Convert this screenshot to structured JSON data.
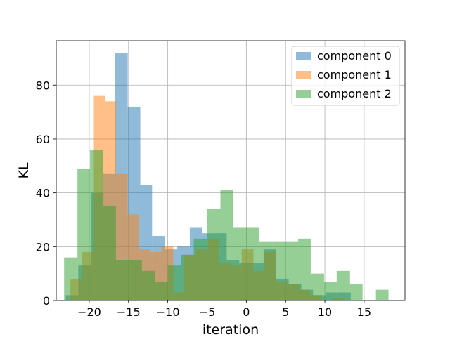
{
  "chart_data": {
    "type": "bar",
    "xlabel": "iteration",
    "ylabel": "KL",
    "xlim": [
      -24.2,
      20.2
    ],
    "ylim": [
      0,
      96.5
    ],
    "xticks": [
      -20,
      -15,
      -10,
      -5,
      0,
      5,
      10,
      15
    ],
    "yticks": [
      0,
      20,
      40,
      60,
      80
    ],
    "grid": true,
    "legend_position": "top-right",
    "series": [
      {
        "name": "component 0",
        "color": "#1f77b4",
        "alpha": 0.5,
        "bins": [
          [
            -23.0,
            -21.4,
            2
          ],
          [
            -21.4,
            -19.8,
            13
          ],
          [
            -19.8,
            -18.3,
            40
          ],
          [
            -18.3,
            -16.7,
            47
          ],
          [
            -16.7,
            -15.1,
            92
          ],
          [
            -15.1,
            -13.5,
            72
          ],
          [
            -13.5,
            -12.0,
            43
          ],
          [
            -12.0,
            -10.4,
            24
          ],
          [
            -10.4,
            -8.8,
            19
          ],
          [
            -8.8,
            -7.2,
            20
          ],
          [
            -7.2,
            -5.6,
            27
          ],
          [
            -5.6,
            -4.1,
            25
          ],
          [
            -4.1,
            -2.5,
            25
          ],
          [
            -2.5,
            -0.9,
            15
          ],
          [
            -0.9,
            0.7,
            14
          ],
          [
            0.7,
            2.2,
            14
          ],
          [
            2.2,
            3.8,
            19
          ],
          [
            3.8,
            5.4,
            8
          ],
          [
            5.4,
            7.0,
            6
          ],
          [
            7.0,
            8.5,
            4
          ],
          [
            8.5,
            10.1,
            2
          ],
          [
            10.1,
            11.7,
            3
          ],
          [
            11.7,
            13.3,
            3
          ],
          [
            13.3,
            14.9,
            0
          ]
        ]
      },
      {
        "name": "component 1",
        "color": "#ff7f0e",
        "alpha": 0.5,
        "bins": [
          [
            -22.4,
            -20.9,
            8
          ],
          [
            -20.9,
            -19.5,
            18
          ],
          [
            -19.5,
            -18.0,
            76
          ],
          [
            -18.0,
            -16.6,
            74
          ],
          [
            -16.6,
            -15.1,
            47
          ],
          [
            -15.1,
            -13.7,
            32
          ],
          [
            -13.7,
            -12.2,
            19
          ],
          [
            -12.2,
            -10.8,
            18
          ],
          [
            -10.8,
            -9.3,
            20
          ],
          [
            -9.3,
            -7.9,
            3
          ],
          [
            -7.9,
            -6.4,
            17
          ],
          [
            -6.4,
            -4.9,
            19
          ],
          [
            -4.9,
            -3.5,
            23
          ],
          [
            -3.5,
            -2.0,
            14
          ],
          [
            -2.0,
            -0.6,
            13
          ],
          [
            -0.6,
            0.9,
            19
          ],
          [
            0.9,
            2.3,
            11
          ],
          [
            2.3,
            3.8,
            18
          ],
          [
            3.8,
            5.2,
            7
          ],
          [
            5.2,
            6.7,
            6
          ],
          [
            6.7,
            8.1,
            4
          ],
          [
            8.1,
            9.6,
            2
          ],
          [
            9.6,
            11.0,
            0
          ],
          [
            11.0,
            12.5,
            1
          ]
        ]
      },
      {
        "name": "component 2",
        "color": "#2ca02c",
        "alpha": 0.5,
        "bins": [
          [
            -23.2,
            -21.5,
            16
          ],
          [
            -21.5,
            -19.9,
            49
          ],
          [
            -19.9,
            -18.2,
            56
          ],
          [
            -18.2,
            -16.6,
            35
          ],
          [
            -16.6,
            -14.9,
            15
          ],
          [
            -14.9,
            -13.3,
            15
          ],
          [
            -13.3,
            -11.6,
            11
          ],
          [
            -11.6,
            -10.0,
            7
          ],
          [
            -10.0,
            -8.3,
            13
          ],
          [
            -8.3,
            -6.7,
            17
          ],
          [
            -6.7,
            -5.0,
            23
          ],
          [
            -5.0,
            -3.3,
            34
          ],
          [
            -3.3,
            -1.7,
            41
          ],
          [
            -1.7,
            0.0,
            27
          ],
          [
            0.0,
            1.6,
            27
          ],
          [
            1.6,
            3.3,
            22
          ],
          [
            3.3,
            4.9,
            22
          ],
          [
            4.9,
            6.6,
            22
          ],
          [
            6.6,
            8.2,
            23
          ],
          [
            8.2,
            9.9,
            10
          ],
          [
            9.9,
            11.5,
            7
          ],
          [
            11.5,
            13.2,
            11
          ],
          [
            13.2,
            14.8,
            6
          ],
          [
            14.8,
            16.5,
            0
          ],
          [
            16.5,
            18.1,
            4
          ]
        ]
      }
    ]
  }
}
